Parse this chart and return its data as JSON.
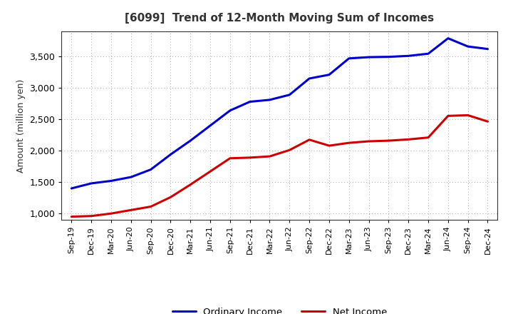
{
  "title": "[6099]  Trend of 12-Month Moving Sum of Incomes",
  "ylabel": "Amount (million yen)",
  "x_labels": [
    "Sep-19",
    "Dec-19",
    "Mar-20",
    "Jun-20",
    "Sep-20",
    "Dec-20",
    "Mar-21",
    "Jun-21",
    "Sep-21",
    "Dec-21",
    "Mar-22",
    "Jun-22",
    "Sep-22",
    "Dec-22",
    "Mar-23",
    "Jun-23",
    "Sep-23",
    "Dec-23",
    "Mar-24",
    "Jun-24",
    "Sep-24",
    "Dec-24"
  ],
  "ordinary_income": [
    1400,
    1480,
    1520,
    1580,
    1700,
    1940,
    2160,
    2400,
    2640,
    2780,
    2810,
    2890,
    3150,
    3210,
    3470,
    3490,
    3495,
    3510,
    3545,
    3790,
    3660,
    3620
  ],
  "net_income": [
    950,
    960,
    1000,
    1055,
    1110,
    1260,
    1460,
    1670,
    1880,
    1890,
    1910,
    2010,
    2175,
    2080,
    2125,
    2150,
    2160,
    2180,
    2210,
    2555,
    2565,
    2465
  ],
  "ordinary_income_color": "#0000cc",
  "net_income_color": "#cc0000",
  "ylim_min": 900,
  "ylim_max": 3900,
  "yticks": [
    1000,
    1500,
    2000,
    2500,
    3000,
    3500
  ],
  "background_color": "#ffffff",
  "grid_color": "#999999",
  "title_color": "#333333",
  "legend_labels": [
    "Ordinary Income",
    "Net Income"
  ]
}
